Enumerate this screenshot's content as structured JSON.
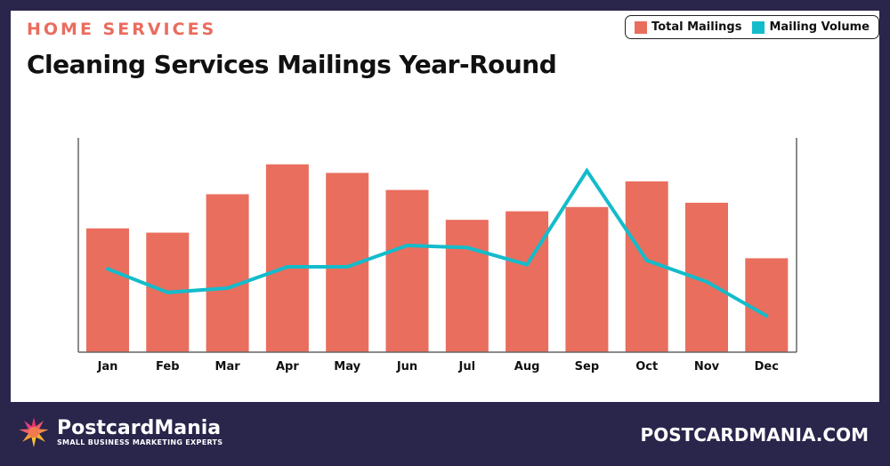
{
  "header": {
    "eyebrow": "HOME SERVICES",
    "title": "Cleaning Services Mailings Year-Round"
  },
  "footer": {
    "brand": "PostcardMania",
    "tagline": "SMALL BUSINESS MARKETING EXPERTS",
    "url": "POSTCARDMANIA.COM"
  },
  "colors": {
    "bar": "#e96e5e",
    "line": "#13bccb",
    "frame": "#29254b",
    "eyebrow": "#ea6c5e"
  },
  "chart_data": {
    "type": "bar+line",
    "title": "Cleaning Services Mailings Year-Round",
    "categories": [
      "Jan",
      "Feb",
      "Mar",
      "Apr",
      "May",
      "Jun",
      "Jul",
      "Aug",
      "Sep",
      "Oct",
      "Nov",
      "Dec"
    ],
    "series": [
      {
        "name": "Total Mailings",
        "type": "bar",
        "values": [
          58,
          56,
          74,
          88,
          84,
          76,
          62,
          66,
          68,
          80,
          70,
          44
        ]
      },
      {
        "name": "Mailing Volume",
        "type": "line",
        "values": [
          39,
          28,
          30,
          40,
          40,
          50,
          49,
          41,
          85,
          43,
          33,
          17
        ]
      }
    ],
    "ylim": [
      0,
      100
    ],
    "y_tick_labels_shown": false,
    "grid": false,
    "legend": "top-right"
  }
}
